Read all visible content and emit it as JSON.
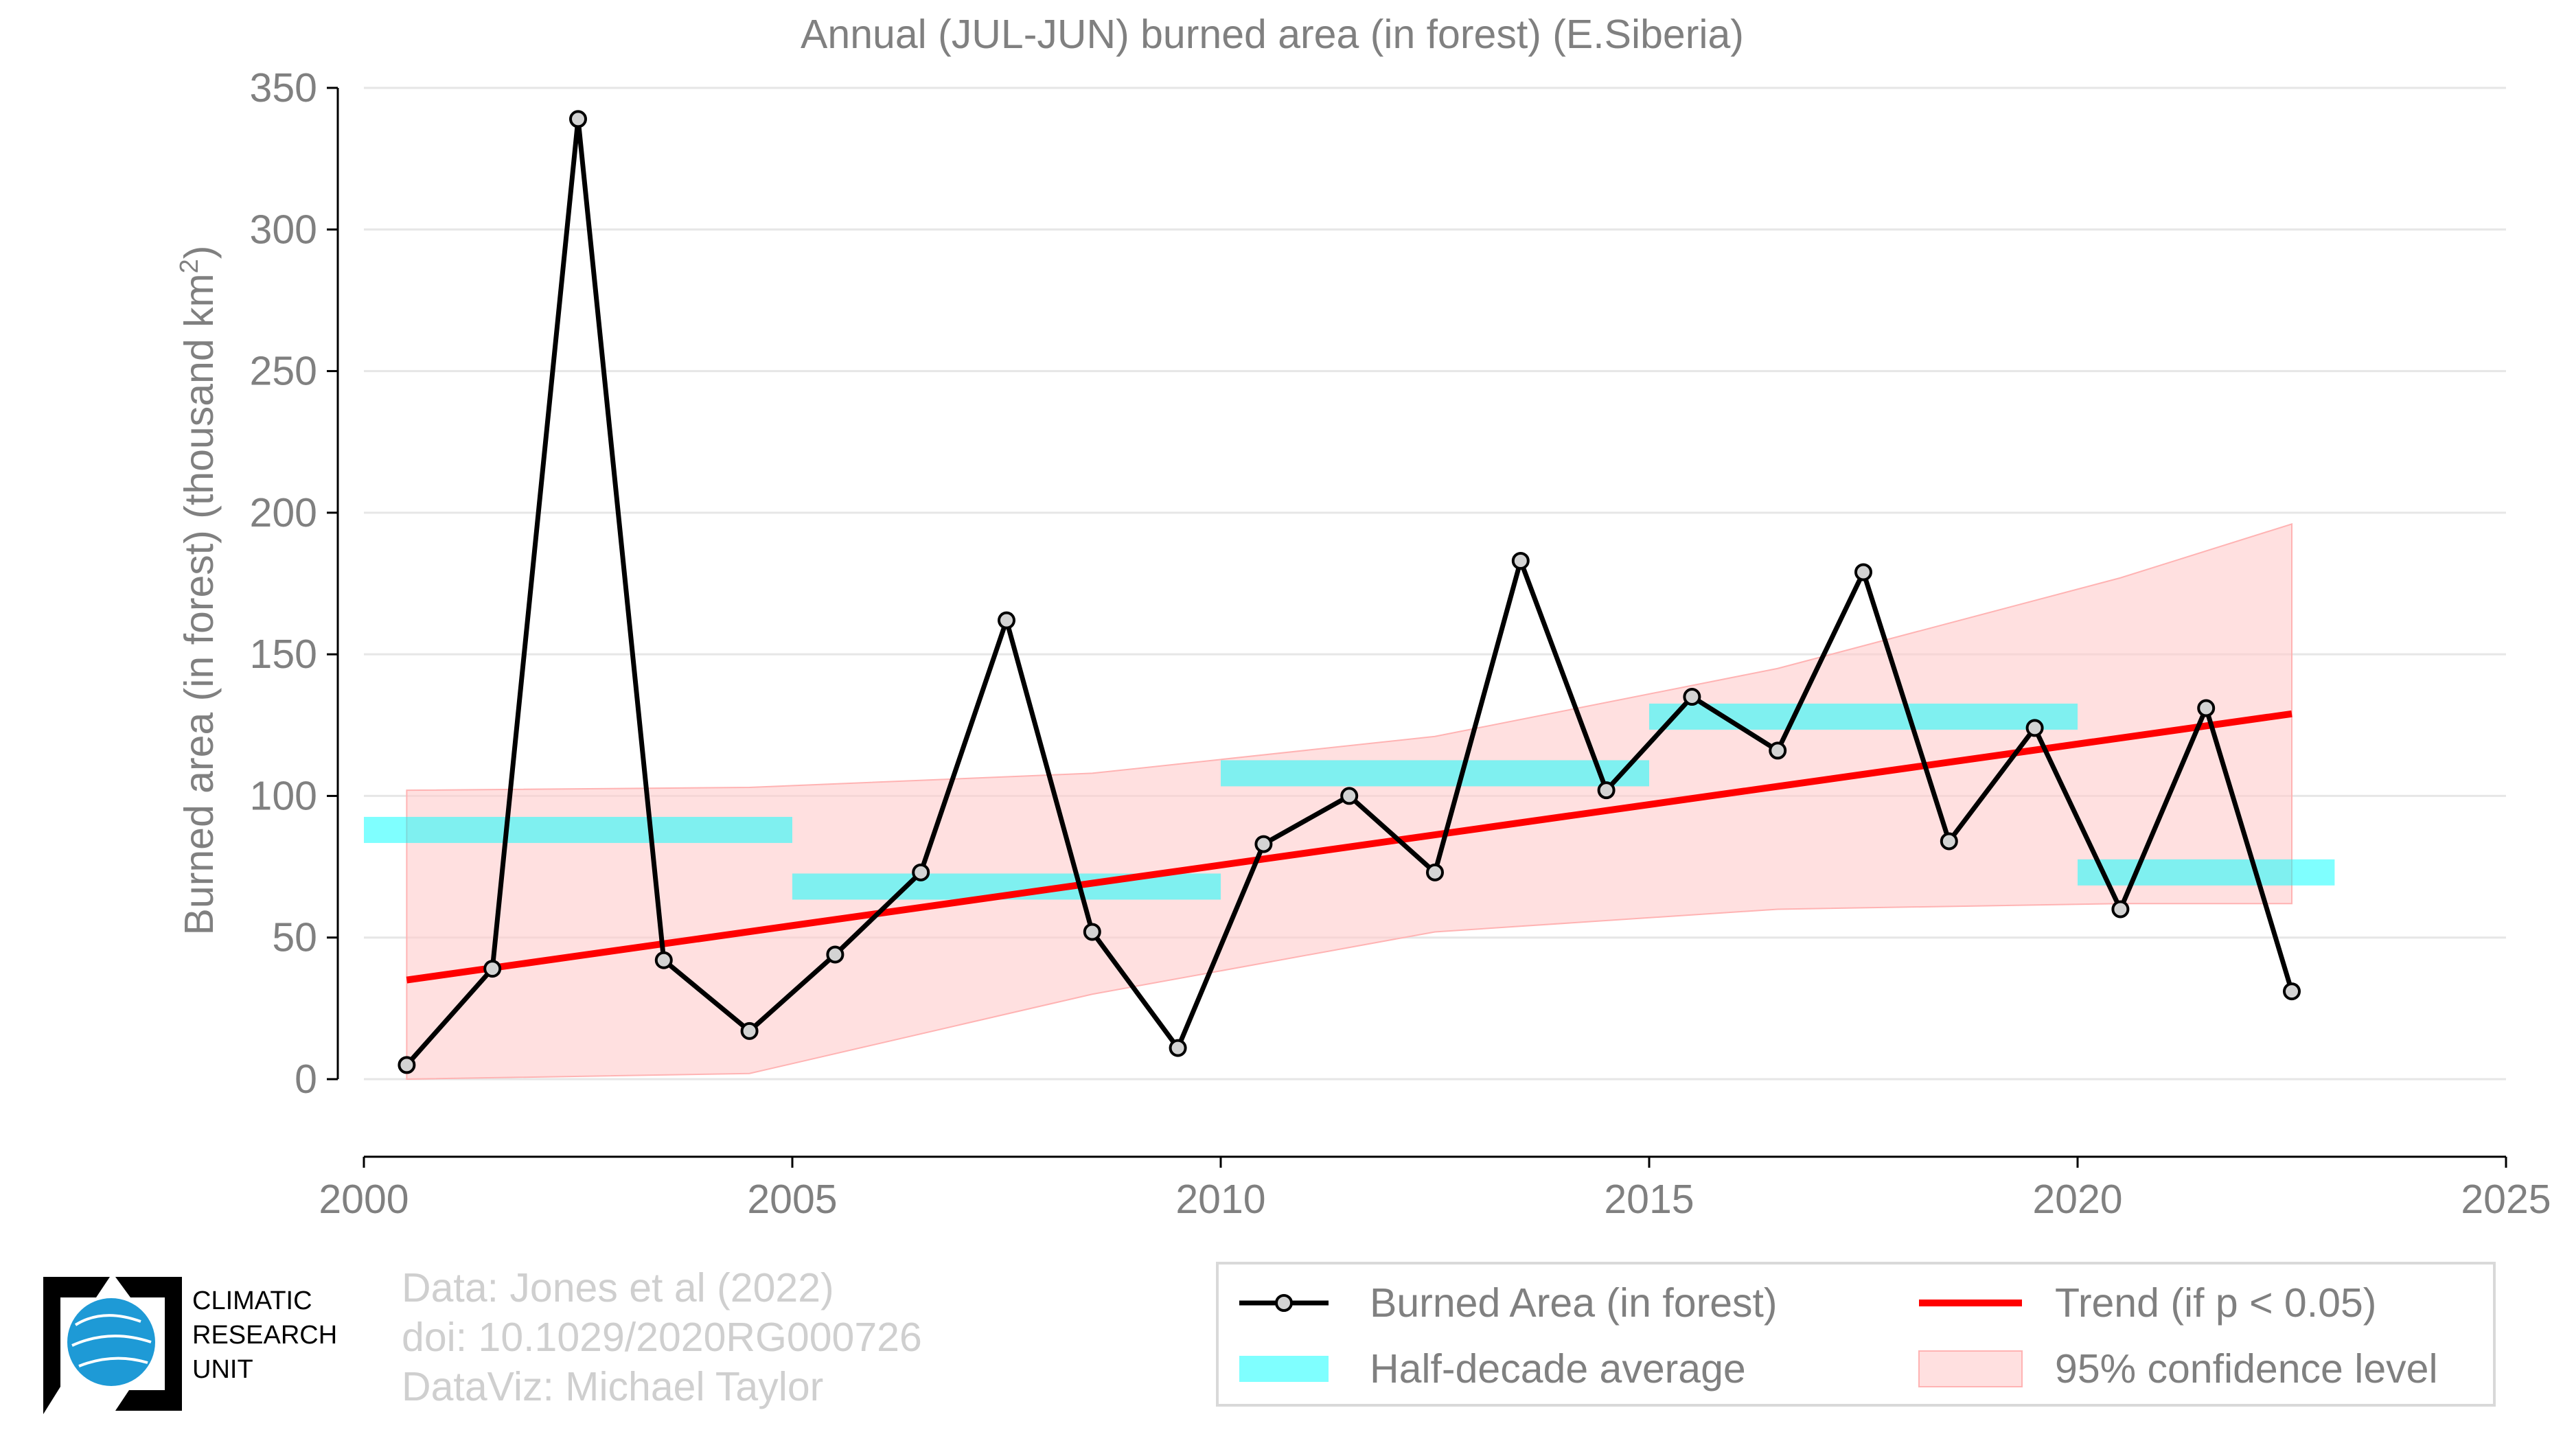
{
  "chart_data": {
    "type": "line",
    "title": "Annual (JUL-JUN) burned area (in forest) (E.Siberia)",
    "ylabel_main": "Burned area (in forest) (thousand km",
    "ylabel_sup": "2",
    "ylabel_close": ")",
    "xlabel": "",
    "xlim": [
      2000,
      2025
    ],
    "ylim": [
      0,
      350
    ],
    "xticks": [
      2000,
      2005,
      2010,
      2015,
      2020,
      2025
    ],
    "yticks": [
      0,
      50,
      100,
      150,
      200,
      250,
      300,
      350
    ],
    "grid": "horizontal",
    "legend_position": "bottom-right",
    "series": [
      {
        "name": "Burned Area (in forest)",
        "color": "#000000",
        "marker_fill": "#d3d3d3",
        "x": [
          2000.5,
          2001.5,
          2002.5,
          2003.5,
          2004.5,
          2005.5,
          2006.5,
          2007.5,
          2008.5,
          2009.5,
          2010.5,
          2011.5,
          2012.5,
          2013.5,
          2014.5,
          2015.5,
          2016.5,
          2017.5,
          2018.5,
          2019.5,
          2020.5,
          2021.5,
          2022.5
        ],
        "y": [
          5,
          39,
          339,
          42,
          17,
          44,
          73,
          162,
          52,
          11,
          83,
          100,
          73,
          183,
          102,
          135,
          116,
          179,
          84,
          124,
          60,
          131,
          31
        ]
      },
      {
        "name": "Half-decade average",
        "color": "#00ffff",
        "segments": [
          {
            "x0": 2000,
            "x1": 2005,
            "y": 88
          },
          {
            "x0": 2005,
            "x1": 2010,
            "y": 68
          },
          {
            "x0": 2010,
            "x1": 2015,
            "y": 108
          },
          {
            "x0": 2015,
            "x1": 2020,
            "y": 128
          },
          {
            "x0": 2020,
            "x1": 2023,
            "y": 73
          }
        ]
      },
      {
        "name": "Trend (if p < 0.05)",
        "color": "#ff0000",
        "x": [
          2000.5,
          2022.5
        ],
        "y": [
          35,
          129
        ]
      },
      {
        "name": "95% confidence level",
        "color": "#ffcccc",
        "x": [
          2000.5,
          2004.5,
          2008.5,
          2012.5,
          2016.5,
          2020.5,
          2022.5
        ],
        "lower": [
          0,
          2,
          30,
          52,
          60,
          62,
          62
        ],
        "upper": [
          102,
          103,
          108,
          121,
          145,
          177,
          196
        ]
      }
    ]
  },
  "credits": {
    "line1": "Data: Jones et al (2022)",
    "line2": "doi: 10.1029/2020RG000726",
    "line3": "DataViz: Michael Taylor"
  },
  "logo": {
    "line1": "CLIMATIC",
    "line2": "RESEARCH",
    "line3": "UNIT"
  },
  "colors": {
    "axis_text": "#808080",
    "grid": "#e6e6e6",
    "logo_globe": "#1e9ad6"
  }
}
